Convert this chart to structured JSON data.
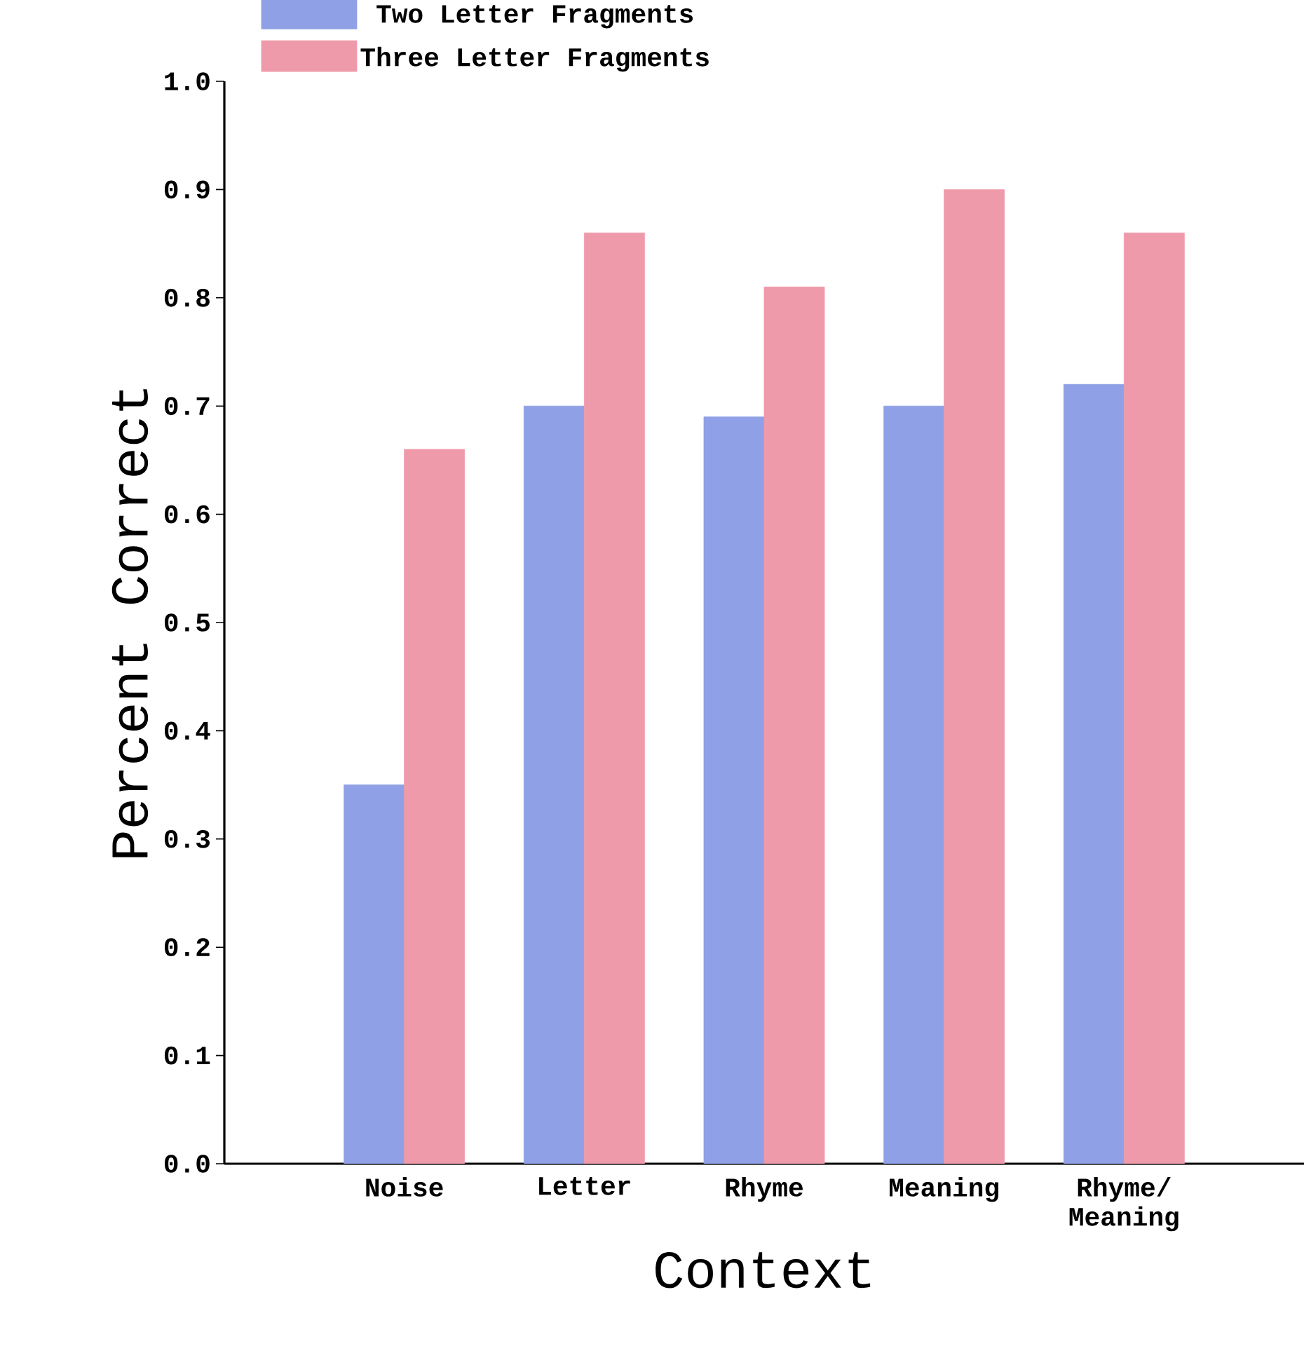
{
  "chart_data": {
    "type": "bar",
    "xlabel": "Context",
    "ylabel": "Percent Correct",
    "categories": [
      "Noise",
      "Letter",
      "Rhyme",
      "Meaning",
      "Rhyme/ Meaning"
    ],
    "series": [
      {
        "name": "Two Letter Fragments",
        "color": "#8fa0e6",
        "values": [
          0.35,
          0.7,
          0.69,
          0.7,
          0.72
        ]
      },
      {
        "name": "Three Letter Fragments",
        "color": "#ef9aaa",
        "values": [
          0.66,
          0.86,
          0.81,
          0.9,
          0.86
        ]
      }
    ],
    "ylim": [
      0,
      1.0
    ],
    "yticks": [
      {
        "value": 0,
        "label": "0.0"
      },
      {
        "value": 0.1,
        "label": "0.1"
      },
      {
        "value": 0.2,
        "label": "0.2"
      },
      {
        "value": 0.3,
        "label": "0.3"
      },
      {
        "value": 0.4,
        "label": "0.4"
      },
      {
        "value": 0.5,
        "label": "0.5"
      },
      {
        "value": 0.6,
        "label": "0.6"
      },
      {
        "value": 0.7,
        "label": "0.7"
      },
      {
        "value": 0.8,
        "label": "0.8"
      },
      {
        "value": 0.9,
        "label": "0.9"
      },
      {
        "value": 1.0,
        "label": "1.0"
      }
    ],
    "legend": "top left",
    "grid": false
  }
}
